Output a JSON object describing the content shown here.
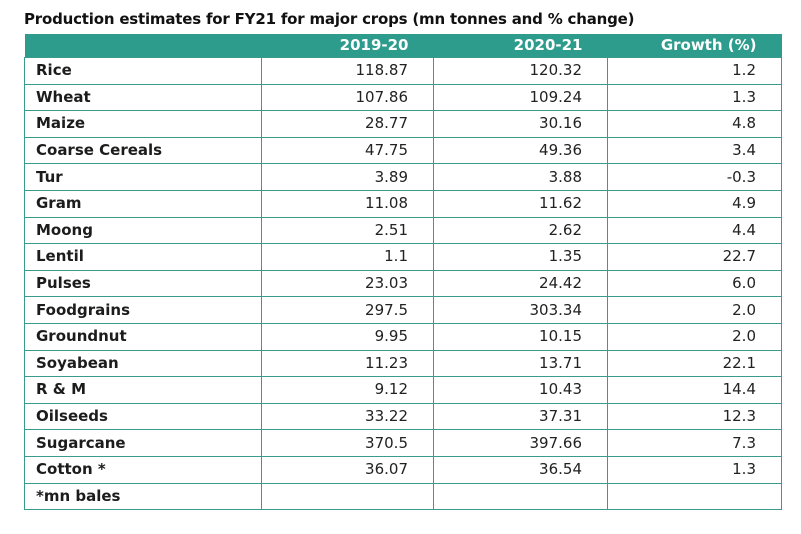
{
  "title": "Production estimates for FY21 for major crops (mn tonnes and % change)",
  "colors": {
    "header_bg": "#2e9c8c",
    "header_text": "#ffffff",
    "grid": "#3a9a8e"
  },
  "table": {
    "headers": [
      "",
      "2019-20",
      "2020-21",
      "Growth (%)"
    ],
    "rows": [
      {
        "crop": "Rice",
        "fy20": "118.87",
        "fy21": "120.32",
        "growth": "1.2"
      },
      {
        "crop": "Wheat",
        "fy20": "107.86",
        "fy21": "109.24",
        "growth": "1.3"
      },
      {
        "crop": "Maize",
        "fy20": "28.77",
        "fy21": "30.16",
        "growth": "4.8"
      },
      {
        "crop": "Coarse Cereals",
        "fy20": "47.75",
        "fy21": "49.36",
        "growth": "3.4"
      },
      {
        "crop": "Tur",
        "fy20": "3.89",
        "fy21": "3.88",
        "growth": "-0.3"
      },
      {
        "crop": "Gram",
        "fy20": "11.08",
        "fy21": "11.62",
        "growth": "4.9"
      },
      {
        "crop": "Moong",
        "fy20": "2.51",
        "fy21": "2.62",
        "growth": "4.4"
      },
      {
        "crop": "Lentil",
        "fy20": "1.1",
        "fy21": "1.35",
        "growth": "22.7"
      },
      {
        "crop": "Pulses",
        "fy20": "23.03",
        "fy21": "24.42",
        "growth": "6.0"
      },
      {
        "crop": "Foodgrains",
        "fy20": "297.5",
        "fy21": "303.34",
        "growth": "2.0"
      },
      {
        "crop": "Groundnut",
        "fy20": "9.95",
        "fy21": "10.15",
        "growth": "2.0"
      },
      {
        "crop": "Soyabean",
        "fy20": "11.23",
        "fy21": "13.71",
        "growth": "22.1"
      },
      {
        "crop": "R & M",
        "fy20": "9.12",
        "fy21": "10.43",
        "growth": "14.4"
      },
      {
        "crop": "Oilseeds",
        "fy20": "33.22",
        "fy21": "37.31",
        "growth": "12.3"
      },
      {
        "crop": "Sugarcane",
        "fy20": "370.5",
        "fy21": "397.66",
        "growth": "7.3"
      },
      {
        "crop": "Cotton *",
        "fy20": "36.07",
        "fy21": "36.54",
        "growth": "1.3"
      },
      {
        "crop": "*mn bales",
        "fy20": "",
        "fy21": "",
        "growth": ""
      }
    ]
  }
}
